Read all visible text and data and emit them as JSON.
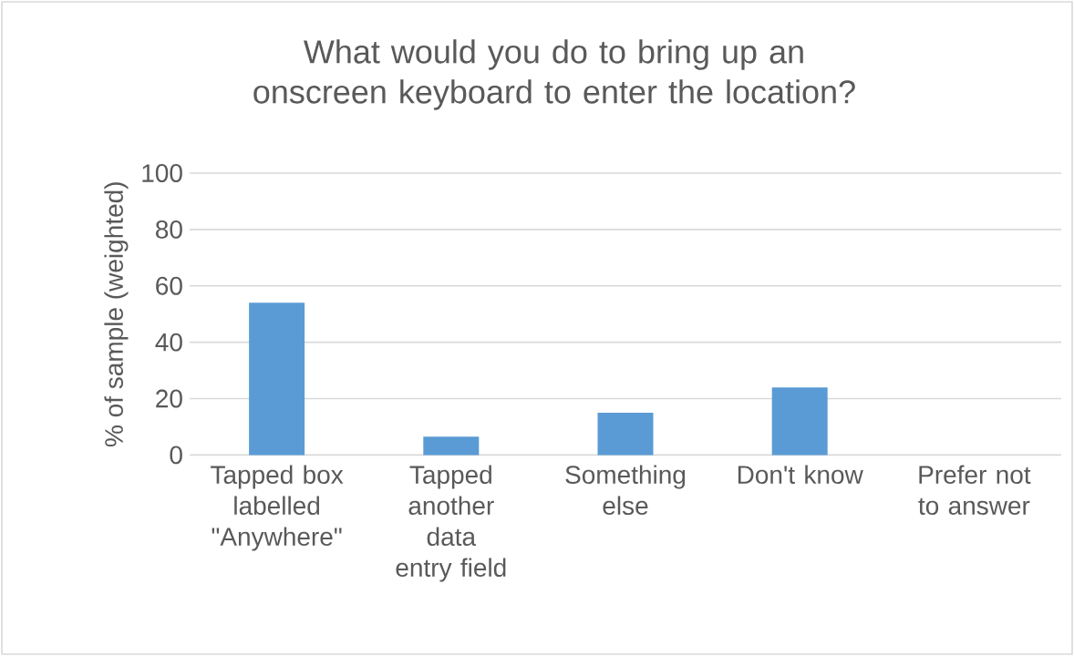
{
  "chart_data": {
    "type": "bar",
    "title": "What would you do to bring up an onscreen keyboard to enter the location?",
    "ylabel": "% of sample (weighted)",
    "categories": [
      "Tapped box labelled \"Anywhere\"",
      "Tapped another data entry field",
      "Something else",
      "Don't know",
      "Prefer not to answer"
    ],
    "values": [
      54,
      6.5,
      15,
      24,
      0
    ],
    "color": "#5b9bd5",
    "ylim": [
      0,
      100
    ],
    "yticks": [
      0,
      20,
      40,
      60,
      80,
      100
    ],
    "grid": "y"
  }
}
